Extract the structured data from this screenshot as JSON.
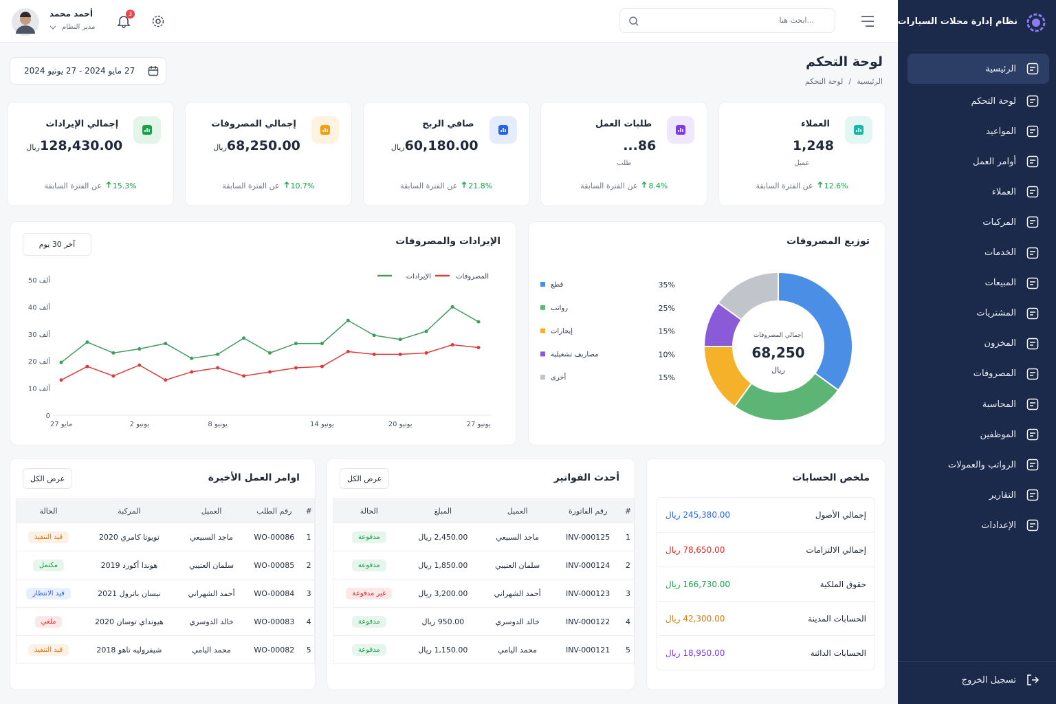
{
  "sidebar": {
    "brand": "نظام إدارة محلات السيارات",
    "menu": [
      "الرئيسية",
      "لوحة التحكم",
      "المواعيد",
      "أوامر العمل",
      "العملاء",
      "المركبات",
      "الخدمات",
      "المبيعات",
      "المشتريات",
      "المخزون",
      "المصروفات",
      "المحاسبة",
      "الموظفين",
      "الرواتب والعمولات",
      "التقارير",
      "الإعدادات"
    ],
    "logout": "تسجيل الخروج"
  },
  "header": {
    "search_placeholder": "ابحث هنا...",
    "notifications": "3",
    "user": {
      "name": "أحمد محمد",
      "role": "مدير النظام"
    }
  },
  "page": {
    "title": "لوحة التحكم",
    "breadcrumb": [
      "الرئيسية",
      "لوحة التحكم"
    ],
    "breadcrumb_separator": "/",
    "date_range": "27 مايو 2024 - 27 يونيو 2024"
  },
  "stats": [
    {
      "label": "العملاء",
      "value": "1,248",
      "unit": "عميل",
      "change": "12.6%",
      "compare": "عن الفترة السابقة",
      "color": "#14b8a6"
    },
    {
      "label": "طلبات العمل",
      "value": "86...",
      "unit": "طلب",
      "change": "8.4%",
      "compare": "عن الفترة السابقة",
      "color": "#7c3aed"
    },
    {
      "label": "صافي الربح",
      "value": "60,180.00",
      "unit": "ريال",
      "change": "21.8%",
      "compare": "عن الفترة السابقة",
      "color": "#2563eb"
    },
    {
      "label": "إجمالي المصروفات",
      "value": "68,250.00",
      "unit": "ريال",
      "change": "10.7%",
      "compare": "عن الفترة السابقة",
      "color": "#f59e0b"
    },
    {
      "label": "إجمالي الإيرادات",
      "value": "128,430.00",
      "unit": "ريال",
      "change": "15.3%",
      "compare": "عن الفترة السابقة",
      "color": "#16a34a"
    }
  ],
  "chart_data": [
    {
      "type": "line",
      "title": "الإيرادات والمصروفات",
      "range": "آخر 30 يوم",
      "categories": [
        "27 مايو",
        null,
        null,
        "2 يونيو",
        null,
        null,
        "8 يونيو",
        null,
        null,
        null,
        "14 يونيو",
        null,
        null,
        "20 يونيو",
        null,
        null,
        "27 يونيو"
      ],
      "series": [
        {
          "name": "المصروفات",
          "color": "#dc3b3b",
          "values": [
            13,
            18,
            14.5,
            18.5,
            13,
            16,
            17.5,
            14.5,
            16,
            17.5,
            18,
            23.5,
            22.5,
            22.5,
            23,
            26,
            25
          ]
        },
        {
          "name": "الإيرادات",
          "color": "#3f9b5f",
          "values": [
            19.5,
            27,
            23,
            24.5,
            26.5,
            21,
            22.5,
            28.5,
            23,
            26.5,
            26.5,
            35,
            29.5,
            28,
            31,
            40,
            34.5
          ]
        }
      ],
      "ylim": [
        0,
        50
      ],
      "yticks": [
        0,
        {
          "value": 10,
          "label": "10 ألف"
        },
        {
          "value": 20,
          "label": "20 ألف"
        },
        {
          "value": 30,
          "label": "30 ألف"
        },
        {
          "value": 40,
          "label": "40 ألف"
        },
        {
          "value": 50,
          "label": "50 ألف"
        }
      ],
      "grid": false
    },
    {
      "type": "pie",
      "title": "توزيع المصروفات",
      "center_label": "إجمالي المصروفات",
      "center_value": "68,250",
      "center_unit": "ريال",
      "categories": [
        "قطع",
        "رواتب",
        "إيجارات",
        "مصاريف تشغيلية",
        "أخرى"
      ],
      "values": [
        35,
        25,
        15,
        10,
        15
      ],
      "value_labels": [
        "35%",
        "25%",
        "15%",
        "10%",
        "15%"
      ],
      "colors": [
        "#4a8ee6",
        "#5cb574",
        "#f5b12a",
        "#8a5bd6",
        "#c1c4ca"
      ]
    }
  ],
  "tables": [
    {
      "title": "ملخص الحسابات",
      "rows": [
        {
          "label": "إجمالي الأصول",
          "value": "245,380.00 ريال",
          "color": "#2563eb"
        },
        {
          "label": "إجمالي الالتزامات",
          "value": "78,650.00 ريال",
          "color": "#dc2626"
        },
        {
          "label": "حقوق الملكية",
          "value": "166,730.00 ريال",
          "color": "#16a34a"
        },
        {
          "label": "الحسابات المدينة",
          "value": "42,300.00 ريال",
          "color": "#d97706"
        },
        {
          "label": "الحسابات الدائنة",
          "value": "18,950.00 ريال",
          "color": "#7c3aed"
        }
      ]
    },
    {
      "title": "أحدث الفواتير",
      "view_all": "عرض الكل",
      "headers": [
        "#",
        "رقم الفاتورة",
        "العميل",
        "المبلغ",
        "الحالة"
      ],
      "rows": [
        [
          "1",
          "INV-000125",
          "ماجد السبيعي",
          "2,450.00 ريال",
          "مدفوعة"
        ],
        [
          "2",
          "INV-000124",
          "سلمان العتيبي",
          "1,850.00 ريال",
          "مدفوعة"
        ],
        [
          "3",
          "INV-000123",
          "أحمد الشهراني",
          "3,200.00 ريال",
          "غير مدفوعة"
        ],
        [
          "4",
          "INV-000122",
          "خالد الدوسري",
          "950.00 ريال",
          "مدفوعة"
        ],
        [
          "5",
          "INV-000121",
          "محمد اليامي",
          "1,150.00 ريال",
          "مدفوعة"
        ]
      ],
      "status_colors": [
        "#16a34a",
        "#16a34a",
        "#dc2626",
        "#16a34a",
        "#16a34a"
      ]
    },
    {
      "title": "اوامر العمل الأخيرة",
      "view_all": "عرض الكل",
      "headers": [
        "#",
        "رقم الطلب",
        "العميل",
        "المركبة",
        "الحالة"
      ],
      "rows": [
        [
          "1",
          "WO-00086",
          "ماجد السبيعي",
          "تويوتا كامري 2020",
          "قيد التنفيذ"
        ],
        [
          "2",
          "WO-00085",
          "سلمان العتيبي",
          "هوندا أكورد 2019",
          "مكتمل"
        ],
        [
          "3",
          "WO-00084",
          "أحمد الشهراني",
          "نيسان باترول 2021",
          "قيد الانتظار"
        ],
        [
          "4",
          "WO-00083",
          "خالد الدوسري",
          "هيونداي توسان 2020",
          "ملغي"
        ],
        [
          "5",
          "WO-00082",
          "محمد اليامي",
          "شيفروليه تاهو 2018",
          "قيد التنفيذ"
        ]
      ],
      "status_colors": [
        "#d97706",
        "#16a34a",
        "#2563eb",
        "#dc2626",
        "#d97706"
      ]
    }
  ]
}
